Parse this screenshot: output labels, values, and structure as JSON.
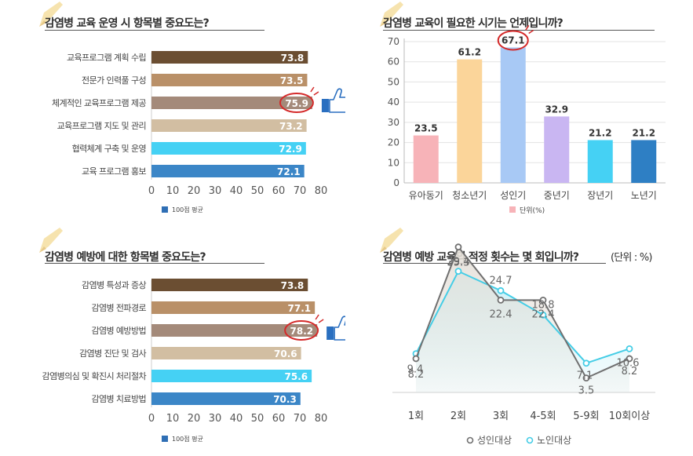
{
  "chart_data": [
    {
      "type": "bar",
      "orientation": "horizontal",
      "title": "감염병 교육 운영 시 항목별 중요도는?",
      "categories": [
        "교육프로그램 계획 수립",
        "전문가 인력풀 구성",
        "체계적인 교육프로그램 제공",
        "교육프로그램 지도 및 관리",
        "협력체계 구축 및 운영",
        "교육 프로그램 홍보"
      ],
      "values": [
        73.8,
        73.5,
        75.9,
        73.2,
        72.9,
        72.1
      ],
      "bar_colors": [
        "#6b4e32",
        "#b99068",
        "#a48a7a",
        "#d2bea2",
        "#45d1f4",
        "#3b86c7"
      ],
      "highlight_index": 2,
      "xticks": [
        0,
        10,
        20,
        30,
        40,
        50,
        60,
        70,
        80
      ],
      "xlim": [
        0,
        80
      ],
      "legend": "100점 평균",
      "legend_color": "#2f6fb5"
    },
    {
      "type": "bar",
      "title": "감염병 교육이 필요한 시기는 언제입니까?",
      "categories": [
        "유아동기",
        "청소년기",
        "성인기",
        "중년기",
        "장년기",
        "노년기"
      ],
      "values": [
        23.5,
        61.2,
        67.1,
        32.9,
        21.2,
        21.2
      ],
      "bar_colors": [
        "#f7b3b8",
        "#fbd59a",
        "#a8c9f5",
        "#c9b6f2",
        "#45d1f4",
        "#2e7fc4"
      ],
      "highlight_index": 2,
      "yticks": [
        0,
        10,
        20,
        30,
        40,
        50,
        60,
        70
      ],
      "ylim": [
        0,
        70
      ],
      "legend": "단위(%)",
      "legend_color": "#f7b3b8"
    },
    {
      "type": "bar",
      "orientation": "horizontal",
      "title": "감염병 예방에 대한 항목별 중요도는?",
      "categories": [
        "감염병 특성과 증상",
        "감염병 전파경로",
        "감염병 예방방법",
        "감염병 진단 및 검사",
        "감염병의심 및 확진시 처리절차",
        "감염병 치료방법"
      ],
      "values": [
        73.8,
        77.1,
        78.2,
        70.6,
        75.6,
        70.3
      ],
      "bar_colors": [
        "#6b4e32",
        "#b99068",
        "#a48a7a",
        "#d2bea2",
        "#45d1f4",
        "#3b86c7"
      ],
      "highlight_index": 2,
      "xticks": [
        0,
        10,
        20,
        30,
        40,
        50,
        60,
        70,
        80
      ],
      "xlim": [
        0,
        80
      ],
      "legend": "100점 평균",
      "legend_color": "#2f6fb5"
    },
    {
      "type": "area",
      "title": "감염병 예방 교육의 적정 횟수는 몇 회입니까?",
      "unit_note": "(단위 : %)",
      "categories": [
        "1회",
        "2회",
        "3회",
        "4-5회",
        "5-9회",
        "10회이상"
      ],
      "ylim": [
        0,
        32
      ],
      "series": [
        {
          "name": "성인대상",
          "values": [
            8.2,
            35.3,
            22.4,
            22.4,
            3.5,
            8.2
          ],
          "color": "#707070",
          "fill": "#e6e1da"
        },
        {
          "name": "노인대상",
          "values": [
            9.4,
            29.4,
            24.7,
            18.8,
            7.1,
            10.6
          ],
          "color": "#45cde6",
          "fill": "#c8f0f7"
        }
      ]
    }
  ]
}
